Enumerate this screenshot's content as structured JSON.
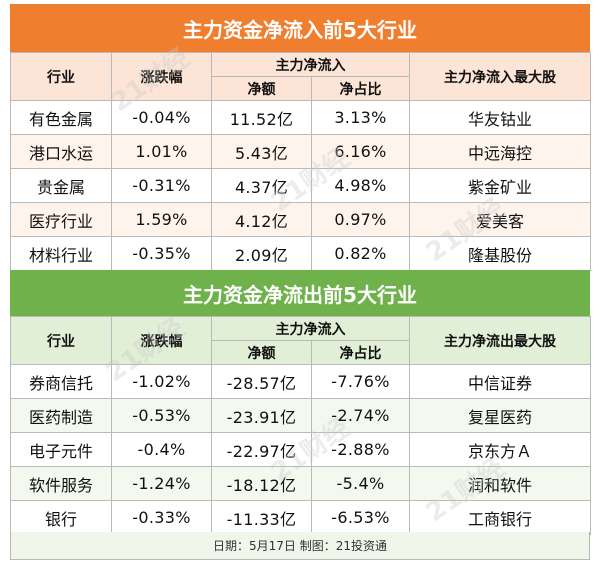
{
  "inflow": {
    "title": "主力资金净流入前5大行业",
    "headers": {
      "industry": "行业",
      "change": "涨跌幅",
      "net_group": "主力净流入",
      "net_amount": "净额",
      "net_ratio": "净占比",
      "top_stock": "主力净流入最大股"
    },
    "rows": [
      {
        "industry": "有色金属",
        "change": "-0.04%",
        "amount": "11.52亿",
        "ratio": "3.13%",
        "stock": "华友钴业"
      },
      {
        "industry": "港口水运",
        "change": "1.01%",
        "amount": "5.43亿",
        "ratio": "6.16%",
        "stock": "中远海控"
      },
      {
        "industry": "贵金属",
        "change": "-0.31%",
        "amount": "4.37亿",
        "ratio": "4.98%",
        "stock": "紫金矿业"
      },
      {
        "industry": "医疗行业",
        "change": "1.59%",
        "amount": "4.12亿",
        "ratio": "0.97%",
        "stock": "爱美客"
      },
      {
        "industry": "材料行业",
        "change": "-0.35%",
        "amount": "2.09亿",
        "ratio": "0.82%",
        "stock": "隆基股份"
      }
    ]
  },
  "outflow": {
    "title": "主力资金净流出前5大行业",
    "headers": {
      "industry": "行业",
      "change": "涨跌幅",
      "net_group": "主力净流入",
      "net_amount": "净额",
      "net_ratio": "净占比",
      "top_stock": "主力净流出最大股"
    },
    "rows": [
      {
        "industry": "券商信托",
        "change": "-1.02%",
        "amount": "-28.57亿",
        "ratio": "-7.76%",
        "stock": "中信证券"
      },
      {
        "industry": "医药制造",
        "change": "-0.53%",
        "amount": "-23.91亿",
        "ratio": "-2.74%",
        "stock": "复星医药"
      },
      {
        "industry": "电子元件",
        "change": "-0.4%",
        "amount": "-22.97亿",
        "ratio": "-2.88%",
        "stock": "京东方Ａ"
      },
      {
        "industry": "软件服务",
        "change": "-1.24%",
        "amount": "-18.12亿",
        "ratio": "-5.4%",
        "stock": "润和软件"
      },
      {
        "industry": "银行",
        "change": "-0.33%",
        "amount": "-11.33亿",
        "ratio": "-6.53%",
        "stock": "工商银行"
      }
    ]
  },
  "footer": "日期：5月17日 制图：21投资通",
  "watermark": "21财经",
  "colors": {
    "inflow_banner": "#ef7f2f",
    "outflow_banner": "#6fb24b"
  }
}
